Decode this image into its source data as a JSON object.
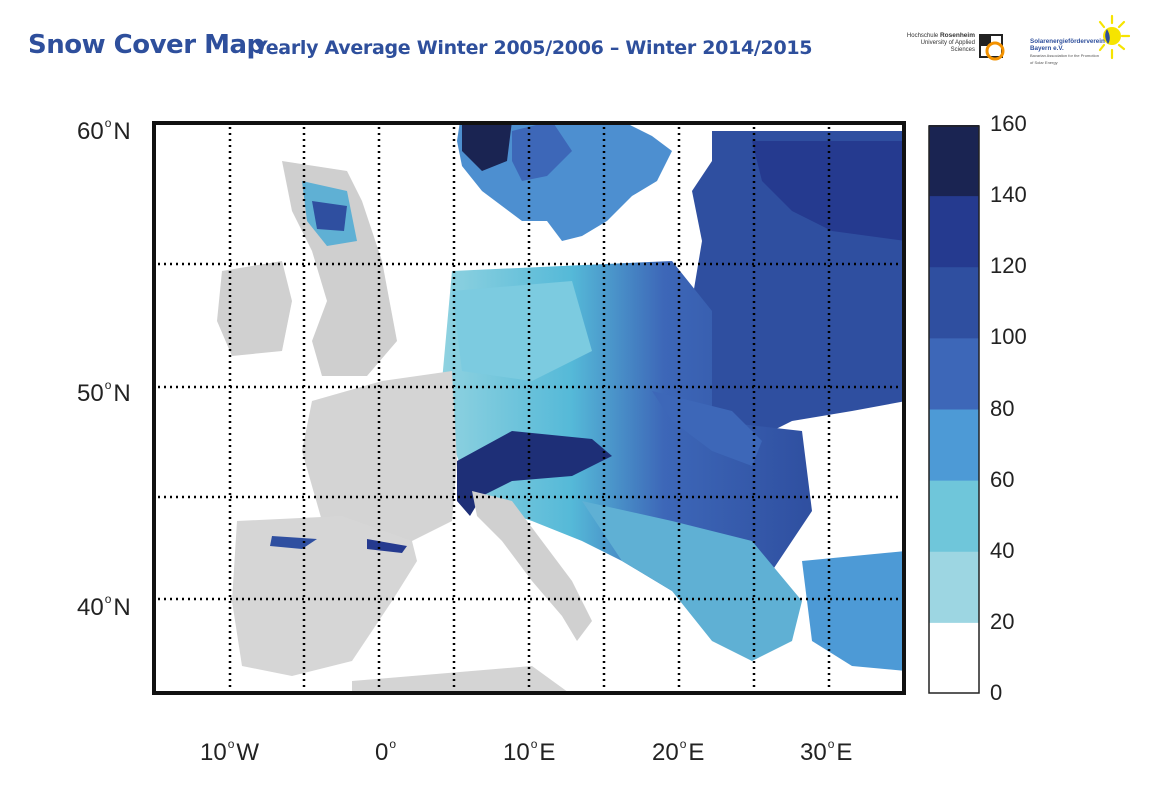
{
  "header": {
    "title": "Snow Cover Map",
    "subtitle": "Yearly Average Winter 2005/2006 – Winter 2014/2015"
  },
  "logos": {
    "hochschule": {
      "line1": "Hochschule",
      "line1b": "Rosenheim",
      "line2": "University of Applied Sciences"
    },
    "verein": {
      "line1": "Solarenergieförderverein",
      "line2": "Bayern e.V.",
      "small": "Bavarian Association for the Promotion of Solar Energy"
    }
  },
  "map": {
    "lat_labels": [
      {
        "value": "60",
        "suffix": "N"
      },
      {
        "value": "50",
        "suffix": "N"
      },
      {
        "value": "40",
        "suffix": "N"
      }
    ],
    "lon_labels": [
      {
        "value": "10",
        "suffix": "W"
      },
      {
        "value": "0",
        "suffix": ""
      },
      {
        "value": "10",
        "suffix": "E"
      },
      {
        "value": "20",
        "suffix": "E"
      },
      {
        "value": "30",
        "suffix": "E"
      }
    ],
    "degree_symbol": "o"
  },
  "legend": {
    "ticks": [
      "160",
      "140",
      "120",
      "100",
      "80",
      "60",
      "40",
      "20",
      "0"
    ],
    "colors": [
      "#1a2452",
      "#253a8f",
      "#2f4fa0",
      "#3d67b8",
      "#4d9ad6",
      "#6fc6da",
      "#9dd6e2",
      "#ffffff"
    ]
  }
}
